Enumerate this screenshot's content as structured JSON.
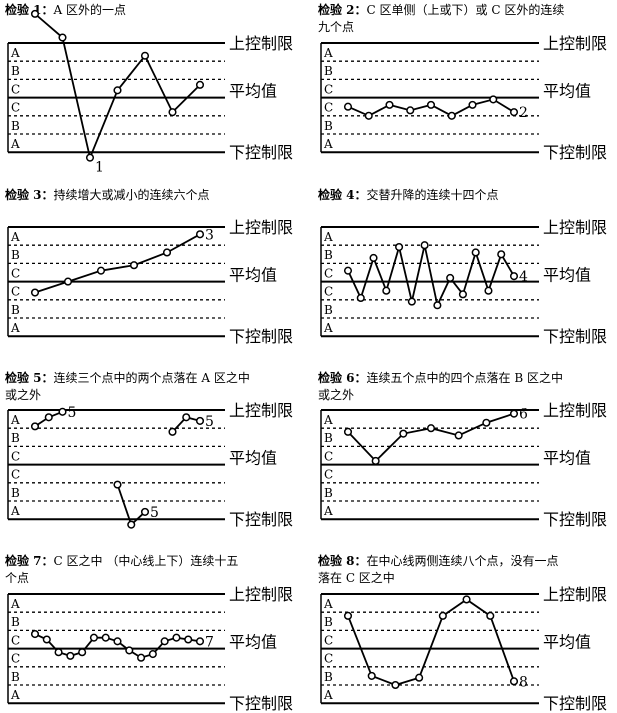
{
  "labels": {
    "ucl": "上控制限",
    "center": "平均值",
    "lcl": "下控制限",
    "upper_zones": [
      "A",
      "B",
      "C"
    ],
    "lower_zones": [
      "C",
      "B",
      "A"
    ]
  },
  "panels": [
    {
      "id": 1,
      "title_bold": "检验 1：",
      "title_lines": [
        "A 区外的一点"
      ],
      "points": [
        4.6,
        3.3,
        -3.3,
        0.4,
        2.3,
        -0.8,
        0.7
      ],
      "annotation": "1"
    },
    {
      "id": 2,
      "title_bold": "检验 2：",
      "title_lines": [
        "C 区单侧（上或下）或 C 区外的连续",
        "九个点"
      ],
      "points": [
        -0.5,
        -1.0,
        -0.4,
        -0.7,
        -0.4,
        -1.0,
        -0.4,
        -0.1,
        -0.8
      ],
      "annotation": "2"
    },
    {
      "id": 3,
      "title_bold": "检验 3：",
      "title_lines": [
        "持续增大或减小的连续六个点"
      ],
      "points": [
        -0.6,
        0.0,
        0.6,
        0.9,
        1.6,
        2.6
      ],
      "annotation": "3"
    },
    {
      "id": 4,
      "title_bold": "检验 4：",
      "title_lines": [
        "交替升降的连续十四个点"
      ],
      "points": [
        0.6,
        -0.9,
        1.3,
        -0.5,
        1.9,
        -1.1,
        2.0,
        -1.3,
        0.2,
        -0.7,
        1.6,
        -0.5,
        1.5,
        0.3
      ],
      "annotation": "4"
    },
    {
      "id": 5,
      "title_bold": "检验 5：",
      "title_lines": [
        "连续三个点中的两个点落在 A 区之中",
        "或之外"
      ],
      "points": [
        2.1,
        2.6,
        2.9,
        null,
        null,
        null,
        -1.1,
        -3.3,
        -2.6,
        null,
        1.8,
        2.6,
        2.4
      ],
      "annotation": "5"
    },
    {
      "id": 6,
      "title_bold": "检验 6：",
      "title_lines": [
        "连续五个点中的四个点落在 B 区之中",
        "或之外"
      ],
      "points": [
        1.8,
        0.2,
        1.7,
        2.0,
        1.6,
        2.3,
        2.8
      ],
      "annotation": "6"
    },
    {
      "id": 7,
      "title_bold": "检验 7：",
      "title_lines": [
        "C 区之中 （中心线上下）连续十五",
        "个点"
      ],
      "points": [
        0.8,
        0.5,
        -0.2,
        -0.4,
        -0.2,
        0.6,
        0.6,
        0.4,
        -0.1,
        -0.5,
        -0.3,
        0.4,
        0.6,
        0.5,
        0.4
      ],
      "annotation": "7"
    },
    {
      "id": 8,
      "title_bold": "检验 8：",
      "title_lines": [
        "在中心线两侧连续八个点，没有一点",
        "落在 C 区之中"
      ],
      "points": [
        1.8,
        -1.5,
        -2.0,
        -1.6,
        1.8,
        2.7,
        1.8,
        -1.8
      ],
      "annotation": "8"
    }
  ]
}
